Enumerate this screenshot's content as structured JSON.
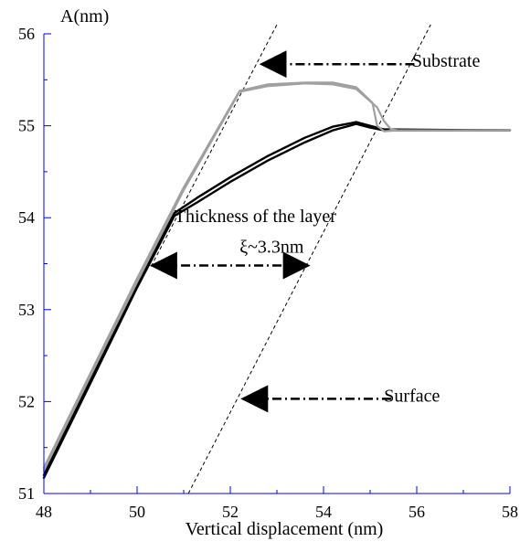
{
  "chart_data": {
    "type": "line",
    "title": "",
    "xlabel": "Vertical displacement (nm)",
    "ylabel": "A(nm)",
    "xlim": [
      48,
      58
    ],
    "ylim": [
      51,
      56
    ],
    "x_ticks": [
      "48",
      "50",
      "52",
      "54",
      "56",
      "58"
    ],
    "y_ticks": [
      "51",
      "52",
      "53",
      "54",
      "55",
      "56"
    ],
    "grid": false,
    "colors": {
      "axis": "#0000ff",
      "black_series": "#000000",
      "gray_series": "#a0a0a0"
    },
    "series": [
      {
        "color": "#000000",
        "x": [
          48.0,
          49.0,
          50.0,
          50.8,
          51.3,
          52.0,
          52.8,
          53.6,
          54.2,
          54.7,
          55.0,
          55.3,
          58.0
        ],
        "y": [
          51.2,
          52.23,
          53.27,
          54.05,
          54.22,
          54.44,
          54.67,
          54.87,
          54.99,
          55.04,
          55.0,
          54.96,
          54.95
        ]
      },
      {
        "color": "#000000",
        "x": [
          48.0,
          49.0,
          50.0,
          50.8,
          51.3,
          52.0,
          52.8,
          53.6,
          54.2,
          54.7,
          55.0,
          55.3,
          58.0
        ],
        "y": [
          51.17,
          52.2,
          53.24,
          54.02,
          54.17,
          54.39,
          54.62,
          54.82,
          54.95,
          55.02,
          54.98,
          54.95,
          54.95
        ]
      },
      {
        "color": "#a0a0a0",
        "x": [
          48.0,
          49.0,
          50.0,
          51.0,
          52.2,
          52.8,
          53.6,
          54.2,
          54.7,
          55.05,
          55.15,
          55.3,
          55.6,
          58.0
        ],
        "y": [
          51.28,
          52.31,
          53.34,
          54.33,
          55.38,
          55.45,
          55.47,
          55.47,
          55.42,
          55.25,
          55.0,
          54.94,
          54.95,
          54.95
        ]
      },
      {
        "color": "#a0a0a0",
        "x": [
          48.0,
          49.0,
          50.0,
          51.0,
          52.2,
          52.8,
          53.6,
          54.2,
          54.7,
          55.15,
          55.3,
          55.45,
          55.6,
          58.0
        ],
        "y": [
          51.25,
          52.28,
          53.3,
          54.3,
          55.37,
          55.43,
          55.46,
          55.45,
          55.4,
          55.2,
          55.05,
          54.96,
          54.95,
          54.95
        ]
      }
    ],
    "guides": [
      {
        "x": [
          50.3,
          53.0
        ],
        "y": [
          53.47,
          56.1
        ]
      },
      {
        "x": [
          51.1,
          56.3
        ],
        "y": [
          51.0,
          56.1
        ]
      }
    ],
    "annotations": [
      {
        "text": "Substrate",
        "x": 55.9,
        "y": 55.64
      },
      {
        "text": "Thickness of the layer",
        "x": 50.8,
        "y": 53.95
      },
      {
        "text": "ξ~3.3nm",
        "x": 52.2,
        "y": 53.62
      },
      {
        "text": "Surface",
        "x": 55.3,
        "y": 52.0
      }
    ],
    "arrows": [
      {
        "from": [
          55.95,
          55.67
        ],
        "to": [
          52.72,
          55.67
        ]
      },
      {
        "from": [
          50.55,
          53.48
        ],
        "to": [
          53.62,
          53.48
        ]
      },
      {
        "from": [
          55.45,
          52.03
        ],
        "to": [
          52.32,
          52.03
        ]
      }
    ]
  }
}
